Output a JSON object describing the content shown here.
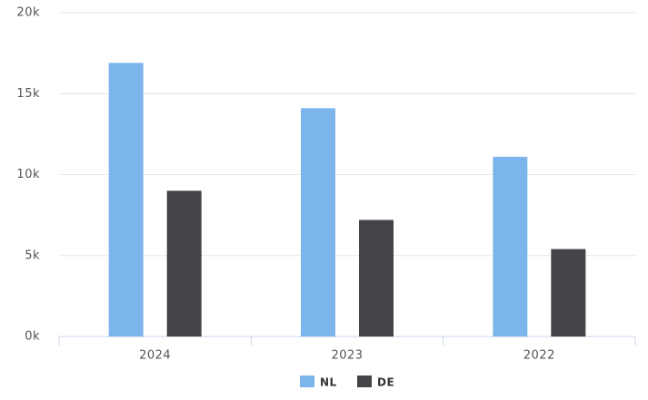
{
  "chart_data": {
    "type": "bar",
    "categories": [
      "2024",
      "2023",
      "2022"
    ],
    "series": [
      {
        "name": "NL",
        "color": "#7cb5ec",
        "values": [
          16900,
          14100,
          11100
        ]
      },
      {
        "name": "DE",
        "color": "#434348",
        "values": [
          9000,
          7200,
          5400
        ]
      }
    ],
    "ylim": [
      0,
      20000
    ],
    "yticks": [
      {
        "value": 0,
        "label": "0k"
      },
      {
        "value": 5000,
        "label": "5k"
      },
      {
        "value": 10000,
        "label": "10k"
      },
      {
        "value": 15000,
        "label": "15k"
      },
      {
        "value": 20000,
        "label": "20k"
      }
    ],
    "grid": true,
    "legend": "bottom"
  }
}
